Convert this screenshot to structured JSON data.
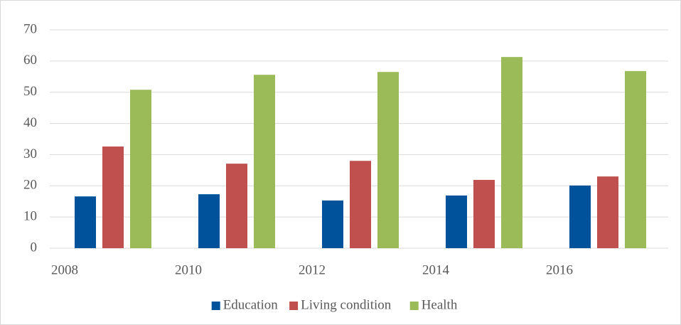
{
  "chart_data": {
    "type": "bar",
    "categories": [
      "2008",
      "2010",
      "2012",
      "2014",
      "2016"
    ],
    "series": [
      {
        "name": "Education",
        "color": "#00539b",
        "values": [
          16.6,
          17.3,
          15.3,
          16.9,
          20.1
        ]
      },
      {
        "name": "Living condition",
        "color": "#c0504d",
        "values": [
          32.6,
          27.1,
          28.0,
          21.9,
          23.0
        ]
      },
      {
        "name": "Health",
        "color": "#9bbb59",
        "values": [
          50.8,
          55.6,
          56.5,
          61.3,
          56.8
        ]
      }
    ],
    "ylim": [
      0,
      70
    ],
    "yticks": [
      0,
      10,
      20,
      30,
      40,
      50,
      60,
      70
    ],
    "grid": true,
    "legend": "bottom"
  }
}
